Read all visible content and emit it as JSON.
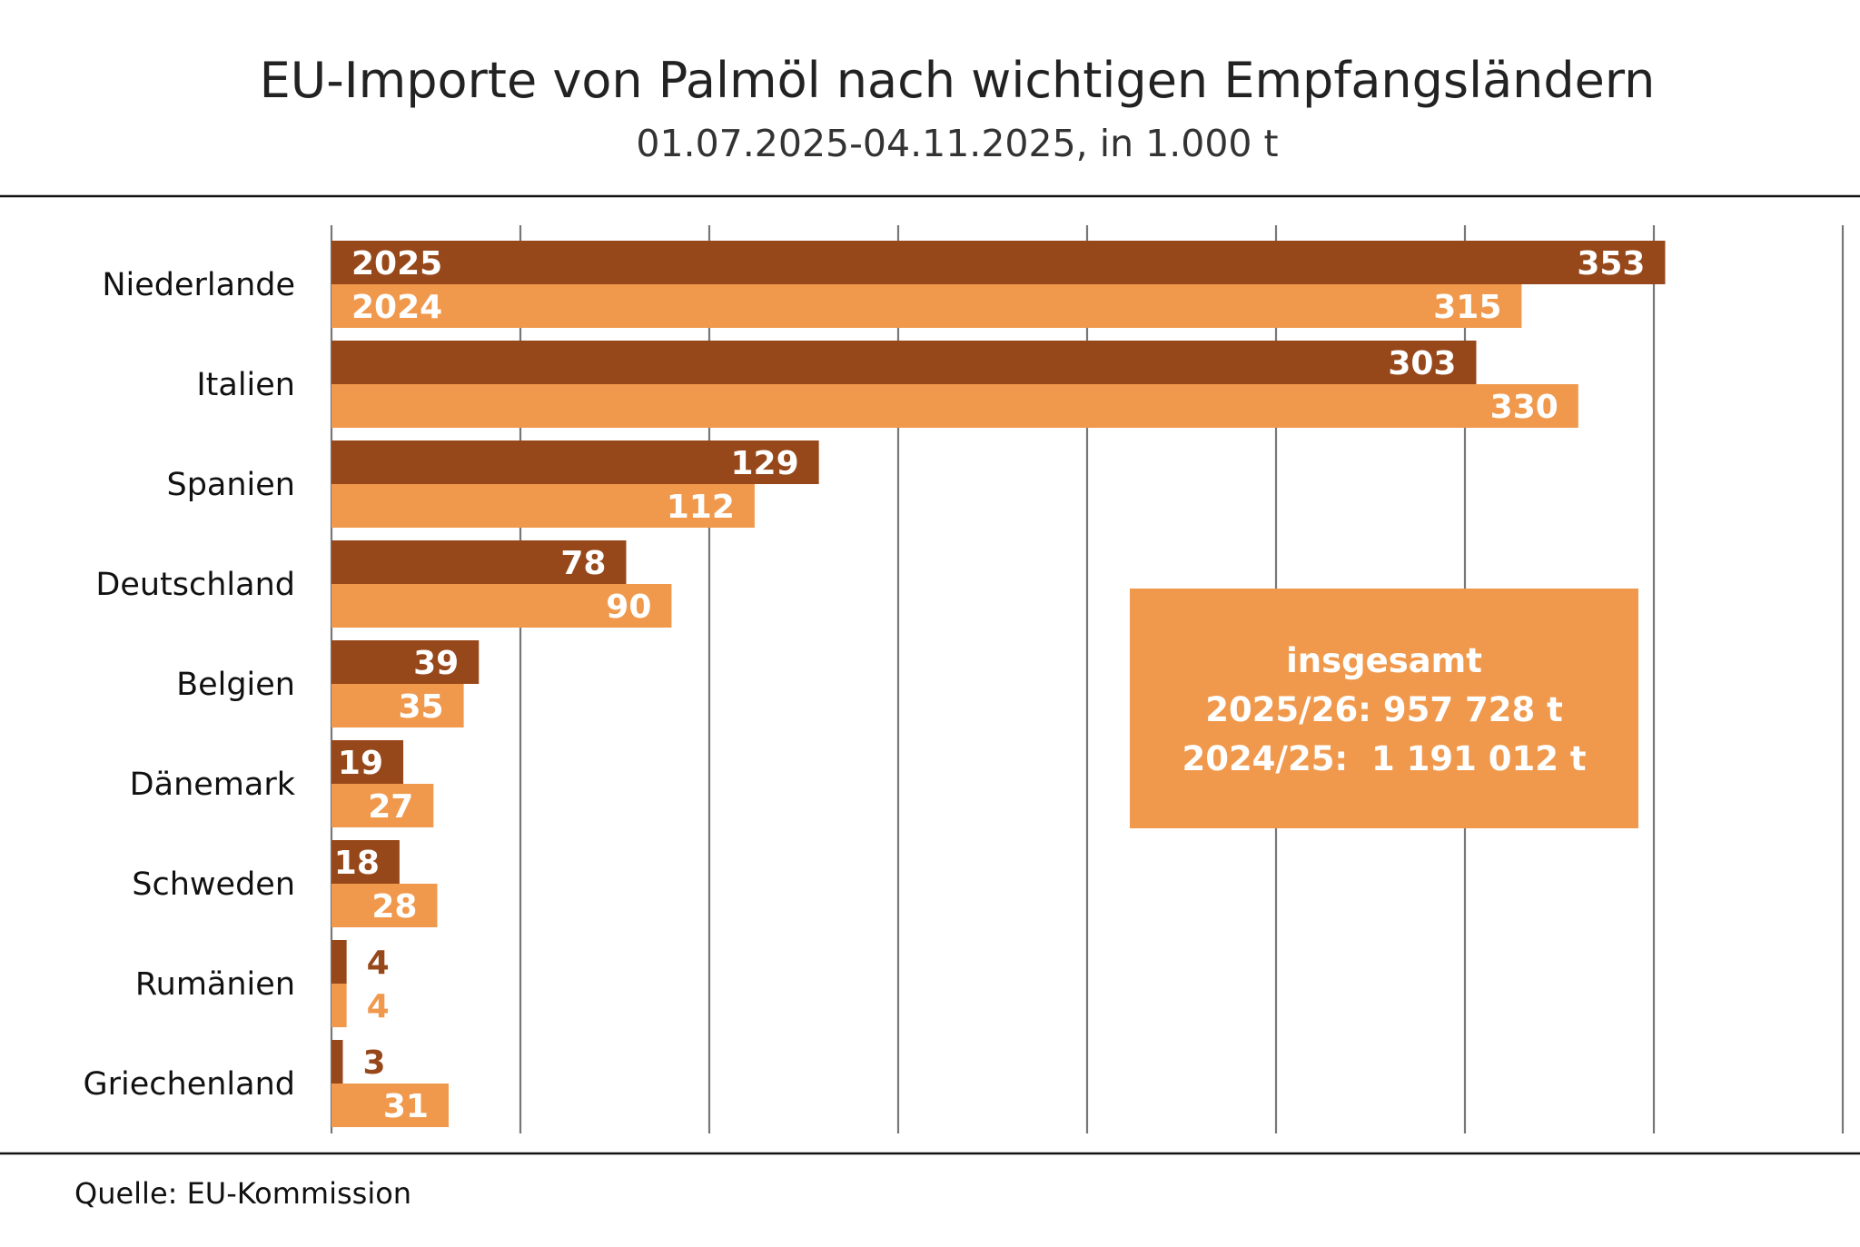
{
  "chart_data": {
    "type": "bar",
    "orientation": "horizontal",
    "title": "EU-Importe von Palmöl nach wichtigen Empfangsländern",
    "subtitle": "01.07.2025-04.11.2025, in 1.000 t",
    "categories": [
      "Niederlande",
      "Italien",
      "Spanien",
      "Deutschland",
      "Belgien",
      "Dänemark",
      "Schweden",
      "Rumänien",
      "Griechenland"
    ],
    "series": [
      {
        "name": "2025",
        "color": "#97481a",
        "values": [
          353,
          303,
          129,
          78,
          39,
          19,
          18,
          4,
          3
        ]
      },
      {
        "name": "2024",
        "color": "#f0994d",
        "values": [
          315,
          330,
          112,
          90,
          35,
          27,
          28,
          4,
          31
        ]
      }
    ],
    "xlim": [
      0,
      400
    ],
    "grid": true,
    "source": "Quelle: EU-Kommission",
    "info_box": {
      "heading": "insgesamt",
      "line1": "2025/26: 957 728 t",
      "line2": "2024/25:  1 191 012 t"
    }
  }
}
